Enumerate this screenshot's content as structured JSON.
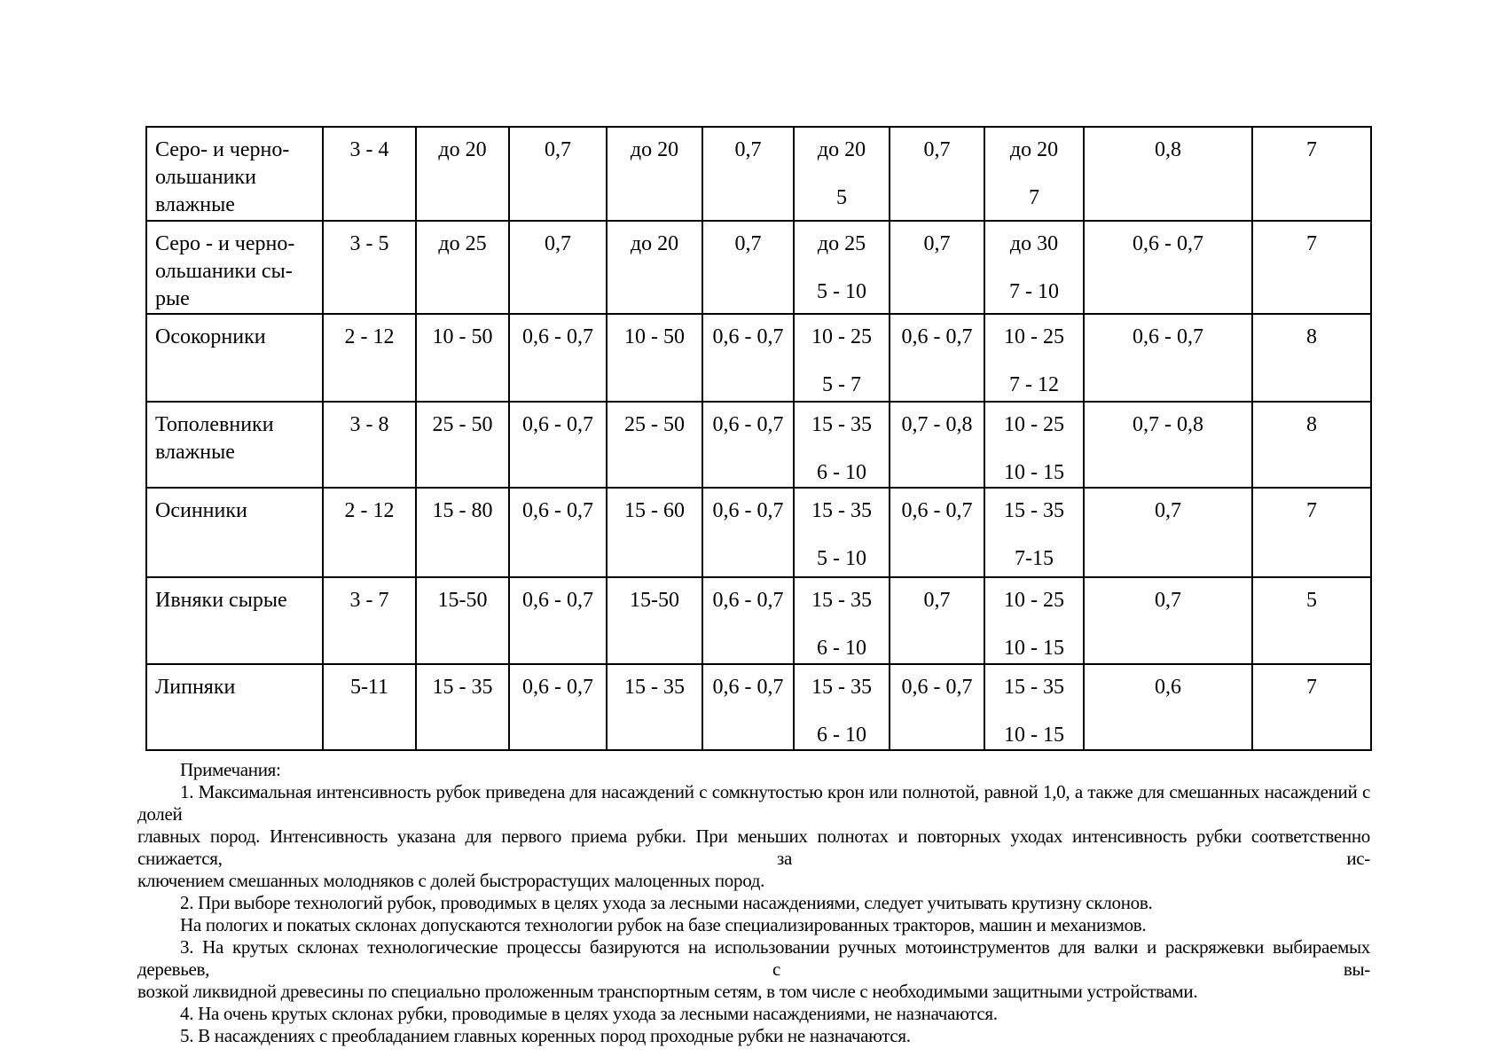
{
  "page": {
    "background_color": "#ffffff",
    "text_color": "#000000",
    "border_color": "#000000"
  },
  "table": {
    "rows": [
      {
        "name": "Серо- и черно-\nольшаники\nвлажные",
        "c2": "3 - 4",
        "c3": "до 20",
        "c4": "0,7",
        "c5": "до 20",
        "c6": "0,7",
        "c7a": "до 20",
        "c7b": "5",
        "c8": "0,7",
        "c9a": "до 20",
        "c9b": "7",
        "c10": "0,8",
        "c11": "7"
      },
      {
        "name": "Серо - и черно-\nольшаники сы-\nрые",
        "c2": "3 - 5",
        "c3": "до 25",
        "c4": "0,7",
        "c5": "до 20",
        "c6": "0,7",
        "c7a": "до 25",
        "c7b": "5 - 10",
        "c8": "0,7",
        "c9a": "до 30",
        "c9b": "7 - 10",
        "c10": "0,6 - 0,7",
        "c11": "7"
      },
      {
        "name": "Осокорники",
        "c2": "2 - 12",
        "c3": "10 - 50",
        "c4": "0,6 - 0,7",
        "c5": "10 - 50",
        "c6": "0,6 - 0,7",
        "c7a": "10 - 25",
        "c7b": "5 - 7",
        "c8": "0,6 - 0,7",
        "c9a": "10 - 25",
        "c9b": "7 - 12",
        "c10": "0,6 - 0,7",
        "c11": "8"
      },
      {
        "name": "Тополевники\nвлажные",
        "c2": "3 - 8",
        "c3": "25 - 50",
        "c4": "0,6 - 0,7",
        "c5": "25 - 50",
        "c6": "0,6 - 0,7",
        "c7a": "15 - 35",
        "c7b": "6 - 10",
        "c8": "0,7 - 0,8",
        "c9a": "10 - 25",
        "c9b": "10 - 15",
        "c10": "0,7 - 0,8",
        "c11": "8"
      },
      {
        "name": "Осинники",
        "c2": "2 - 12",
        "c3": "15 - 80",
        "c4": "0,6 - 0,7",
        "c5": "15 - 60",
        "c6": "0,6 - 0,7",
        "c7a": "15 - 35",
        "c7b": "5 - 10",
        "c8": "0,6 - 0,7",
        "c9a": "15 - 35",
        "c9b": "7-15",
        "c10": "0,7",
        "c11": "7"
      },
      {
        "name": "Ивняки сырые",
        "c2": "3 - 7",
        "c3": "15-50",
        "c4": "0,6 - 0,7",
        "c5": "15-50",
        "c6": "0,6 - 0,7",
        "c7a": "15 - 35",
        "c7b": "6 - 10",
        "c8": "0,7",
        "c9a": "10 - 25",
        "c9b": "10 - 15",
        "c10": "0,7",
        "c11": "5"
      },
      {
        "name": "Липняки",
        "c2": "5-11",
        "c3": "15 - 35",
        "c4": "0,6 - 0,7",
        "c5": "15 - 35",
        "c6": "0,6 - 0,7",
        "c7a": "15 - 35",
        "c7b": "6 - 10",
        "c8": "0,6 - 0,7",
        "c9a": "15 - 35",
        "c9b": "10 - 15",
        "c10": "0,6",
        "c11": "7"
      }
    ]
  },
  "notes": {
    "lines": [
      "Примечания:",
      "1. Максимальная интенсивность рубок приведена для насаждений с сомкнутостью крон или полнотой, равной 1,0, а также для смешанных насаждений с долей",
      "главных пород. Интенсивность указана для первого приема рубки. При меньших полнотах и повторных уходах интенсивность рубки соответственно снижается, за ис-",
      "ключением смешанных молодняков с долей быстрорастущих малоценных пород.",
      "2. При выборе технологий рубок, проводимых в целях ухода за лесными насаждениями, следует учитывать крутизну склонов.",
      "На пологих и покатых склонах допускаются технологии рубок на базе специализированных тракторов, машин и механизмов.",
      "3. На крутых склонах технологические процессы базируются на использовании ручных мотоинструментов для валки и раскряжевки выбираемых деревьев, с вы-",
      "возкой ликвидной древесины по специально проложенным транспортным сетям, в том числе с необходимыми защитными устройствами.",
      "4. На очень крутых склонах рубки, проводимые в целях ухода за лесными насаждениями, не назначаются.",
      "5. В насаждениях с преобладанием главных коренных пород проходные рубки не назначаются."
    ]
  }
}
